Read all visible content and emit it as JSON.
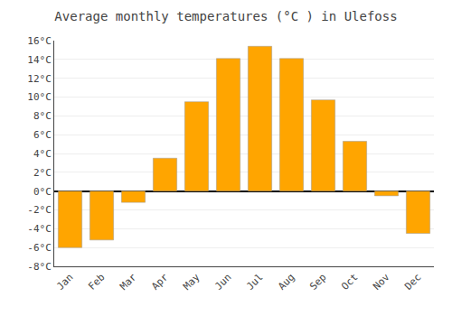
{
  "chart_data": {
    "type": "bar",
    "title": "Average monthly temperatures (°C ) in Ulefoss",
    "categories": [
      "Jan",
      "Feb",
      "Mar",
      "Apr",
      "May",
      "Jun",
      "Jul",
      "Aug",
      "Sep",
      "Oct",
      "Nov",
      "Dec"
    ],
    "values": [
      -6.0,
      -5.2,
      -1.2,
      3.5,
      9.5,
      14.1,
      15.4,
      14.1,
      9.7,
      5.3,
      -0.5,
      -4.5
    ],
    "color": "#FFA500",
    "ylim": [
      -8,
      16
    ],
    "yticks": [
      {
        "value": -8,
        "label": "-8°C"
      },
      {
        "value": -6,
        "label": "-6°C"
      },
      {
        "value": -4,
        "label": "-4°C"
      },
      {
        "value": -2,
        "label": "-2°C"
      },
      {
        "value": 0,
        "label": "0°C"
      },
      {
        "value": 2,
        "label": "2°C"
      },
      {
        "value": 4,
        "label": "4°C"
      },
      {
        "value": 6,
        "label": "6°C"
      },
      {
        "value": 8,
        "label": "8°C"
      },
      {
        "value": 10,
        "label": "10°C"
      },
      {
        "value": 12,
        "label": "12°C"
      },
      {
        "value": 14,
        "label": "14°C"
      },
      {
        "value": 16,
        "label": "16°C"
      }
    ],
    "grid": true
  }
}
